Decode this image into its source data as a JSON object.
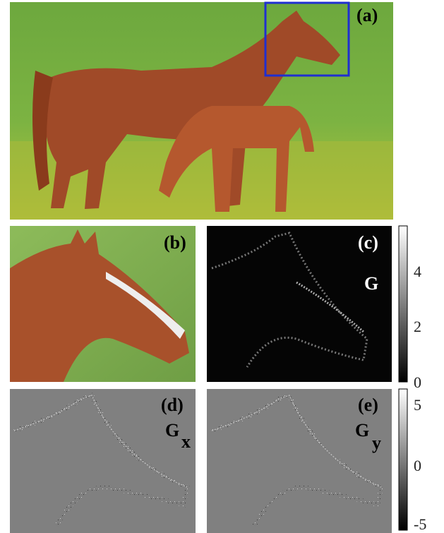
{
  "panels": [
    {
      "label": "(a)"
    },
    {
      "label": "(b)"
    },
    {
      "label": "(c)",
      "symbol": "G"
    },
    {
      "label": "(d)",
      "symbol": "G",
      "subscript": "x"
    },
    {
      "label": "(e)",
      "symbol": "G",
      "subscript": "y"
    }
  ],
  "colorbars": [
    {
      "ticks": [
        "4",
        "2",
        "0"
      ]
    },
    {
      "ticks": [
        "5",
        "0",
        "-5"
      ]
    }
  ]
}
